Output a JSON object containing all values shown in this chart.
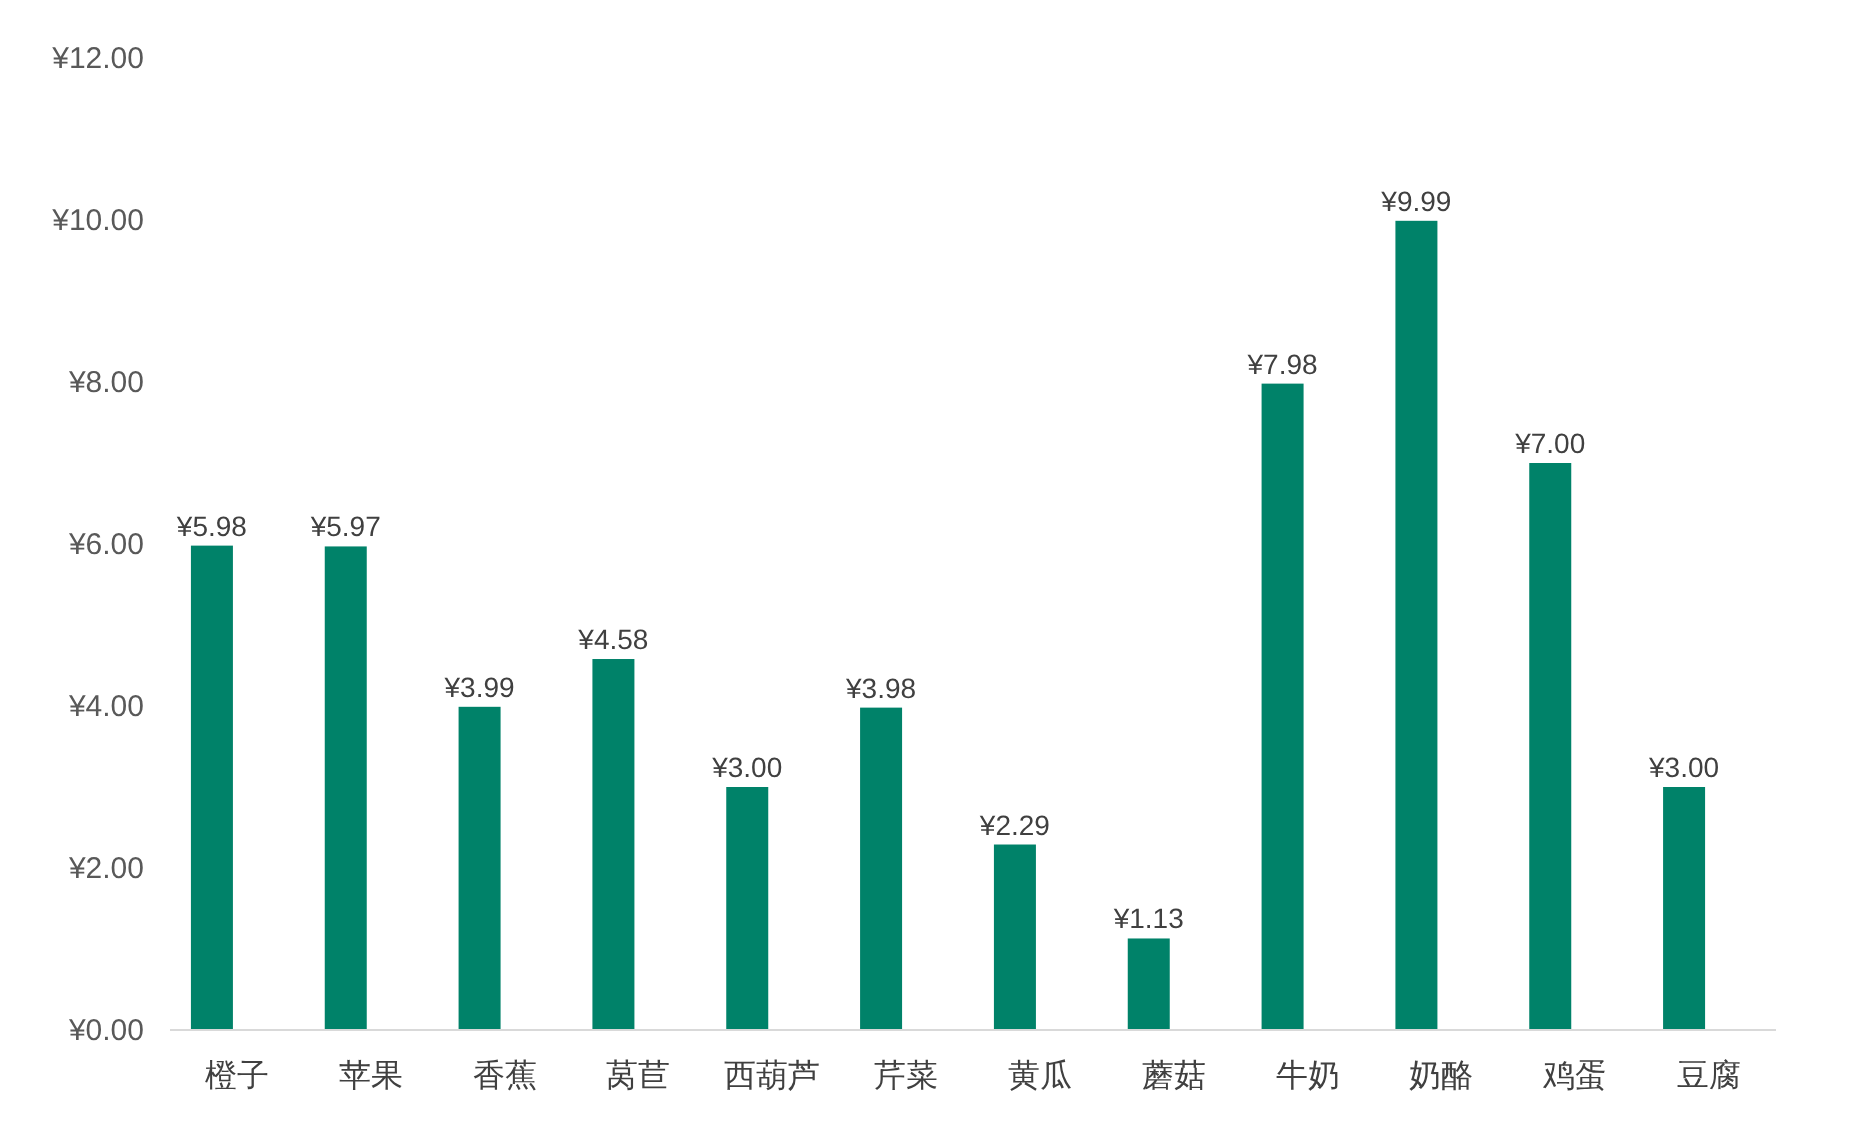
{
  "chart_data": {
    "type": "bar",
    "categories": [
      "橙子",
      "苹果",
      "香蕉",
      "莴苣",
      "西葫芦",
      "芹菜",
      "黄瓜",
      "蘑菇",
      "牛奶",
      "奶酪",
      "鸡蛋",
      "豆腐"
    ],
    "values": [
      5.98,
      5.97,
      3.99,
      4.58,
      3.0,
      3.98,
      2.29,
      1.13,
      7.98,
      9.99,
      7.0,
      3.0
    ],
    "value_labels": [
      "¥5.98",
      "¥5.97",
      "¥3.99",
      "¥4.58",
      "¥3.00",
      "¥3.98",
      "¥2.29",
      "¥1.13",
      "¥7.98",
      "¥9.99",
      "¥7.00",
      "¥3.00"
    ],
    "color": "#008269",
    "ylim": [
      0,
      12
    ],
    "yticks": [
      {
        "value": 0,
        "label": "¥0.00"
      },
      {
        "value": 2,
        "label": "¥2.00"
      },
      {
        "value": 4,
        "label": "¥4.00"
      },
      {
        "value": 6,
        "label": "¥6.00"
      },
      {
        "value": 8,
        "label": "¥8.00"
      },
      {
        "value": 10,
        "label": "¥10.00"
      },
      {
        "value": 12,
        "label": "¥12.00"
      }
    ]
  }
}
